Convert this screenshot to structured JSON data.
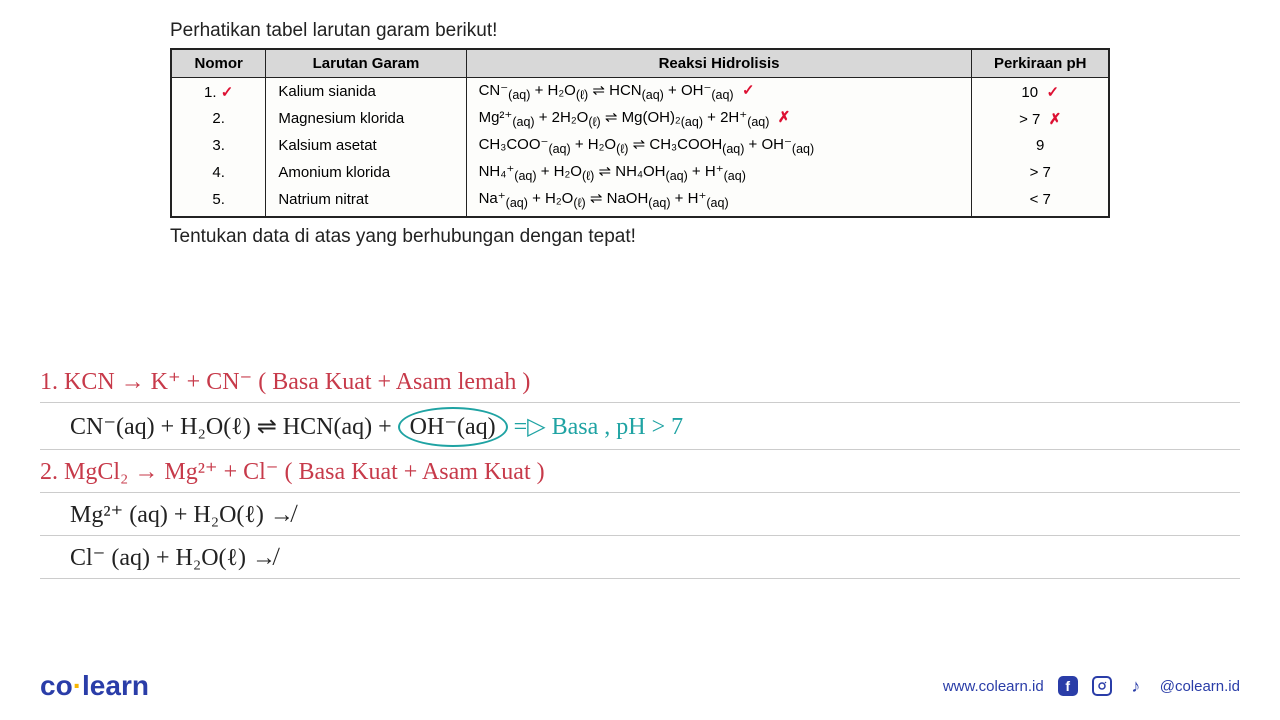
{
  "title": "Perhatikan tabel larutan garam berikut!",
  "headers": {
    "nomor": "Nomor",
    "larutan": "Larutan Garam",
    "reaksi": "Reaksi Hidrolisis",
    "ph": "Perkiraan pH"
  },
  "rows": [
    {
      "num": "1.",
      "num_mark": "✓",
      "larutan": "Kalium sianida",
      "reaksi_html": "CN⁻<sub>(aq)</sub> + H₂O<sub>(ℓ)</sub> ⇌ HCN<sub>(aq)</sub> + OH⁻<sub>(aq)</sub>",
      "reaksi_mark": "✓",
      "ph": "10",
      "ph_mark": "✓"
    },
    {
      "num": "2.",
      "num_mark": "",
      "larutan": "Magnesium klorida",
      "reaksi_html": "Mg²⁺<sub>(aq)</sub> + 2H₂O<sub>(ℓ)</sub> ⇌ Mg(OH)₂<sub>(aq)</sub> + 2H⁺<sub>(aq)</sub>",
      "reaksi_mark": "✗",
      "ph": "> 7",
      "ph_mark": "✗"
    },
    {
      "num": "3.",
      "num_mark": "",
      "larutan": "Kalsium asetat",
      "reaksi_html": "CH₃COO⁻<sub>(aq)</sub> + H₂O<sub>(ℓ)</sub> ⇌ CH₃COOH<sub>(aq)</sub> + OH⁻<sub>(aq)</sub>",
      "reaksi_mark": "",
      "ph": "9",
      "ph_mark": ""
    },
    {
      "num": "4.",
      "num_mark": "",
      "larutan": "Amonium klorida",
      "reaksi_html": "NH₄⁺<sub>(aq)</sub> + H₂O<sub>(ℓ)</sub> ⇌ NH₄OH<sub>(aq)</sub> + H⁺<sub>(aq)</sub>",
      "reaksi_mark": "",
      "ph": "> 7",
      "ph_mark": ""
    },
    {
      "num": "5.",
      "num_mark": "",
      "larutan": "Natrium nitrat",
      "reaksi_html": "Na⁺<sub>(aq)</sub> + H₂O<sub>(ℓ)</sub> ⇌ NaOH<sub>(aq)</sub> + H⁺<sub>(aq)</sub>",
      "reaksi_mark": "",
      "ph": "< 7",
      "ph_mark": ""
    }
  ],
  "instruction": "Tentukan data di atas yang berhubungan dengan tepat!",
  "handwriting": {
    "line1_red": "1. KCN  →  K⁺  +  CN⁻  ( Basa  Kuat  +  Asam lemah )",
    "line2_black": "CN⁻(aq)  +  H₂O(ℓ)    ⇌    HCN(aq)  +",
    "line2_circled": "OH⁻(aq)",
    "line2_teal": "=▷ Basa ,  pH > 7",
    "line3_red": "2. MgCl₂ → Mg²⁺  +  Cl⁻  ( Basa  Kuat     +  Asam  Kuat )",
    "line4_black": "Mg²⁺ (aq)    +   H₂O(ℓ)   ↛",
    "line5_black": "Cl⁻ (aq)    +   H₂O(ℓ)   ↛"
  },
  "colors": {
    "red_mark": "#d13",
    "hw_red": "#c73a4a",
    "hw_teal": "#1fa3a3",
    "brand_blue": "#2a3da8",
    "brand_yellow": "#f7b500",
    "table_header_bg": "#d8d8d8",
    "border": "#222222",
    "rule_line": "#cccccc"
  },
  "footer": {
    "brand_co": "co",
    "brand_learn": "learn",
    "url": "www.colearn.id",
    "handle": "@colearn.id"
  }
}
